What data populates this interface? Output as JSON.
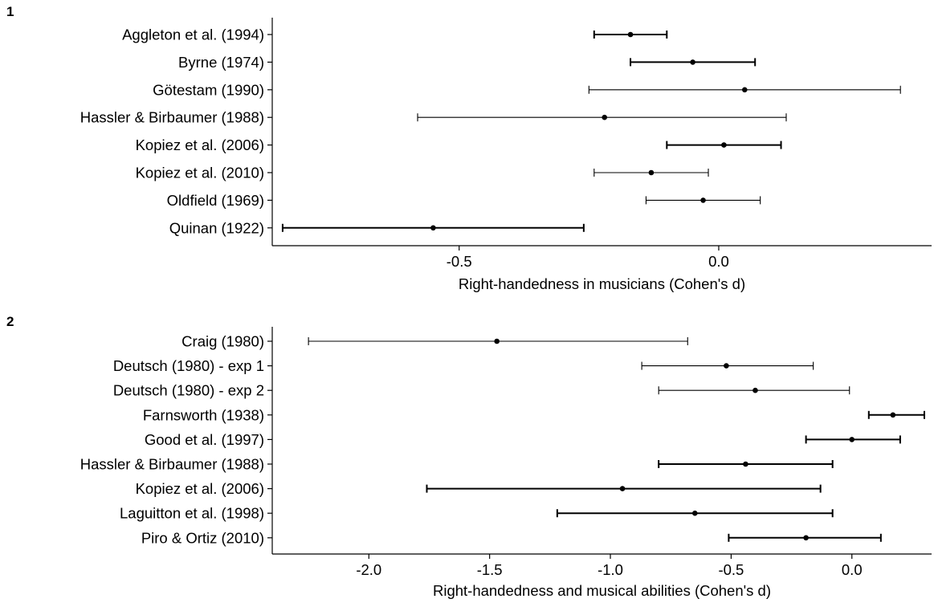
{
  "chart_data": [
    {
      "type": "forest",
      "panel_label": "1",
      "xlabel": "Right-handedness in musicians (Cohen's d)",
      "xlim": [
        -0.86,
        0.41
      ],
      "xticks": [
        -0.5,
        0.0
      ],
      "xtick_labels": [
        "-0.5",
        "0.0"
      ],
      "grid": false,
      "studies": [
        {
          "label": "Aggleton et al. (1994)",
          "estimate": -0.17,
          "ci_low": -0.24,
          "ci_high": -0.1,
          "bold": true
        },
        {
          "label": "Byrne (1974)",
          "estimate": -0.05,
          "ci_low": -0.17,
          "ci_high": 0.07,
          "bold": true
        },
        {
          "label": "Götestam (1990)",
          "estimate": 0.05,
          "ci_low": -0.25,
          "ci_high": 0.35,
          "bold": false
        },
        {
          "label": "Hassler & Birbaumer (1988)",
          "estimate": -0.22,
          "ci_low": -0.58,
          "ci_high": 0.13,
          "bold": false
        },
        {
          "label": "Kopiez et al. (2006)",
          "estimate": 0.01,
          "ci_low": -0.1,
          "ci_high": 0.12,
          "bold": true
        },
        {
          "label": "Kopiez et al. (2010)",
          "estimate": -0.13,
          "ci_low": -0.24,
          "ci_high": -0.02,
          "bold": false
        },
        {
          "label": "Oldfield (1969)",
          "estimate": -0.03,
          "ci_low": -0.14,
          "ci_high": 0.08,
          "bold": false
        },
        {
          "label": "Quinan (1922)",
          "estimate": -0.55,
          "ci_low": -0.84,
          "ci_high": -0.26,
          "bold": true
        }
      ]
    },
    {
      "type": "forest",
      "panel_label": "2",
      "xlabel": "Right-handedness and musical abilities (Cohen's d)",
      "xlim": [
        -2.4,
        0.33
      ],
      "xticks": [
        -2.0,
        -1.5,
        -1.0,
        -0.5,
        0.0
      ],
      "xtick_labels": [
        "-2.0",
        "-1.5",
        "-1.0",
        "-0.5",
        "0.0"
      ],
      "grid": false,
      "studies": [
        {
          "label": "Craig (1980)",
          "estimate": -1.47,
          "ci_low": -2.25,
          "ci_high": -0.68,
          "bold": false
        },
        {
          "label": "Deutsch (1980) - exp 1",
          "estimate": -0.52,
          "ci_low": -0.87,
          "ci_high": -0.16,
          "bold": false
        },
        {
          "label": "Deutsch (1980) - exp 2",
          "estimate": -0.4,
          "ci_low": -0.8,
          "ci_high": -0.01,
          "bold": false
        },
        {
          "label": "Farnsworth (1938)",
          "estimate": 0.17,
          "ci_low": 0.07,
          "ci_high": 0.3,
          "bold": true
        },
        {
          "label": "Good et al. (1997)",
          "estimate": 0.0,
          "ci_low": -0.19,
          "ci_high": 0.2,
          "bold": true
        },
        {
          "label": "Hassler & Birbaumer (1988)",
          "estimate": -0.44,
          "ci_low": -0.8,
          "ci_high": -0.08,
          "bold": true
        },
        {
          "label": "Kopiez et al. (2006)",
          "estimate": -0.95,
          "ci_low": -1.76,
          "ci_high": -0.13,
          "bold": true
        },
        {
          "label": "Laguitton et al. (1998)",
          "estimate": -0.65,
          "ci_low": -1.22,
          "ci_high": -0.08,
          "bold": true
        },
        {
          "label": "Piro & Ortiz (2010)",
          "estimate": -0.19,
          "ci_low": -0.51,
          "ci_high": 0.12,
          "bold": true
        }
      ]
    }
  ]
}
